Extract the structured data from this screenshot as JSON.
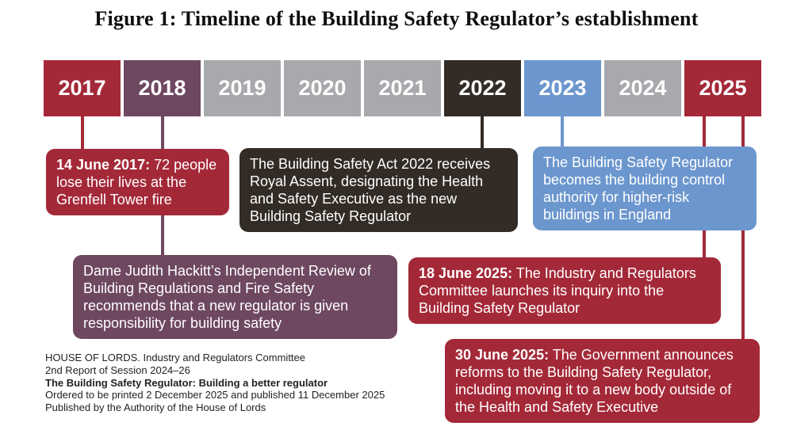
{
  "title": "Figure 1: Timeline of the Building Safety Regulator’s establishment",
  "colors": {
    "red": "#A42938",
    "purple": "#6E4761",
    "gray": "#A7A9AC",
    "dark": "#332C26",
    "blue": "#6C96CE",
    "text_on_box": "#FFFFFF"
  },
  "timeline": {
    "years": [
      {
        "label": "2017",
        "color": "red"
      },
      {
        "label": "2018",
        "color": "purple"
      },
      {
        "label": "2019",
        "color": "gray"
      },
      {
        "label": "2020",
        "color": "gray"
      },
      {
        "label": "2021",
        "color": "gray"
      },
      {
        "label": "2022",
        "color": "dark"
      },
      {
        "label": "2023",
        "color": "blue"
      },
      {
        "label": "2024",
        "color": "gray"
      },
      {
        "label": "2025",
        "color": "red"
      }
    ]
  },
  "events": [
    {
      "year": "2017",
      "date": "14 June 2017:",
      "text": " 72 people lose their lives at the Grenfell Tower fire",
      "color": "red"
    },
    {
      "year": "2018",
      "date": "",
      "text": "Dame Judith Hackitt’s Independent Review of Building Regulations and Fire Safety recommends that a new regulator is given responsibility for building safety",
      "color": "purple"
    },
    {
      "year": "2022",
      "date": "",
      "text": "The Building Safety Act 2022 receives Royal Assent, designating the Health and Safety Executive as the new Building Safety Regulator",
      "color": "dark"
    },
    {
      "year": "2023",
      "date": "",
      "text": "The Building Safety Regulator becomes the building control authority for higher-risk buildings in England",
      "color": "blue"
    },
    {
      "year": "2025",
      "date": "18 June 2025:",
      "text": " The Industry and Regulators Committee launches its inquiry into the Building Safety Regulator",
      "color": "red"
    },
    {
      "year": "2025",
      "date": "30 June 2025:",
      "text": " The Government announces reforms to the Building Safety Regulator, including moving it to a new body outside of the Health and Safety Executive",
      "color": "red"
    }
  ],
  "footer": {
    "lines": [
      "HOUSE OF LORDS. Industry and Regulators Committee",
      "2nd Report of Session 2024–26",
      "The Building Safety Regulator: Building a better regulator",
      "Ordered to be printed 2 December 2025 and published 11 December 2025",
      "Published by the Authority of the House of Lords"
    ]
  }
}
